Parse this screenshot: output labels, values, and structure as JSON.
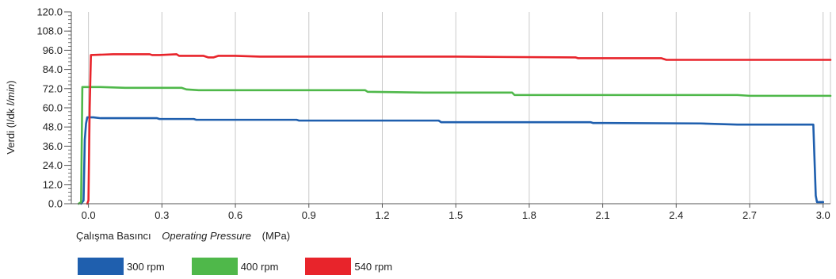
{
  "chart_data": {
    "type": "line",
    "title": "",
    "ylabel_parts": [
      "Verdi (l/dk",
      "l/min",
      ")"
    ],
    "xlabel_parts": [
      "Çalışma Basıncı",
      "Operating Pressure",
      "(MPa)"
    ],
    "xlim": [
      -0.07,
      3.03
    ],
    "ylim": [
      0,
      120
    ],
    "x_ticks": [
      "0.0",
      "0.3",
      "0.6",
      "0.9",
      "1.2",
      "1.5",
      "1.8",
      "2.1",
      "2.4",
      "2.7",
      "3.0"
    ],
    "x_tick_values": [
      0.0,
      0.3,
      0.6,
      0.9,
      1.2,
      1.5,
      1.8,
      2.1,
      2.4,
      2.7,
      3.0
    ],
    "y_ticks": [
      "0.0",
      "12.0",
      "24.0",
      "36.0",
      "48.0",
      "60.0",
      "72.0",
      "84.0",
      "96.0",
      "108.0",
      "120.0"
    ],
    "y_tick_values": [
      0,
      12,
      24,
      36,
      48,
      60,
      72,
      84,
      96,
      108,
      120
    ],
    "grid": "vertical",
    "legend_position": "bottom-left",
    "series": [
      {
        "name": "300 rpm",
        "color": "#1f5fae",
        "points": [
          [
            -0.03,
            0
          ],
          [
            -0.02,
            2
          ],
          [
            -0.015,
            40
          ],
          [
            -0.01,
            50
          ],
          [
            -0.005,
            54
          ],
          [
            0.02,
            54
          ],
          [
            0.05,
            53.5
          ],
          [
            0.15,
            53.5
          ],
          [
            0.28,
            53.5
          ],
          [
            0.29,
            53
          ],
          [
            0.43,
            53
          ],
          [
            0.44,
            52.5
          ],
          [
            0.85,
            52.5
          ],
          [
            0.86,
            52
          ],
          [
            1.43,
            52
          ],
          [
            1.44,
            51
          ],
          [
            2.05,
            51
          ],
          [
            2.06,
            50.5
          ],
          [
            2.5,
            50.2
          ],
          [
            2.65,
            49.5
          ],
          [
            2.96,
            49.5
          ],
          [
            2.97,
            5
          ],
          [
            2.975,
            1
          ],
          [
            3.0,
            1
          ]
        ]
      },
      {
        "name": "400 rpm",
        "color": "#4fb84a",
        "points": [
          [
            -0.04,
            0
          ],
          [
            -0.03,
            1
          ],
          [
            -0.025,
            73
          ],
          [
            0.05,
            73
          ],
          [
            0.15,
            72.5
          ],
          [
            0.38,
            72.5
          ],
          [
            0.4,
            71.5
          ],
          [
            0.45,
            71
          ],
          [
            1.13,
            71
          ],
          [
            1.14,
            70
          ],
          [
            1.37,
            69.5
          ],
          [
            1.73,
            69.5
          ],
          [
            1.74,
            68
          ],
          [
            2.5,
            68
          ],
          [
            2.65,
            68
          ],
          [
            2.7,
            67.5
          ],
          [
            3.03,
            67.5
          ]
        ]
      },
      {
        "name": "540 rpm",
        "color": "#e8242b",
        "points": [
          [
            -0.005,
            0
          ],
          [
            0.0,
            2
          ],
          [
            0.005,
            60
          ],
          [
            0.01,
            93
          ],
          [
            0.1,
            93.5
          ],
          [
            0.25,
            93.5
          ],
          [
            0.26,
            93
          ],
          [
            0.29,
            93
          ],
          [
            0.36,
            93.5
          ],
          [
            0.37,
            92.5
          ],
          [
            0.47,
            92.5
          ],
          [
            0.49,
            91.5
          ],
          [
            0.51,
            91.5
          ],
          [
            0.53,
            92.5
          ],
          [
            0.6,
            92.5
          ],
          [
            0.7,
            92
          ],
          [
            1.5,
            92
          ],
          [
            1.99,
            91.5
          ],
          [
            2.0,
            91
          ],
          [
            2.34,
            91
          ],
          [
            2.36,
            90
          ],
          [
            3.03,
            90
          ]
        ]
      }
    ]
  }
}
